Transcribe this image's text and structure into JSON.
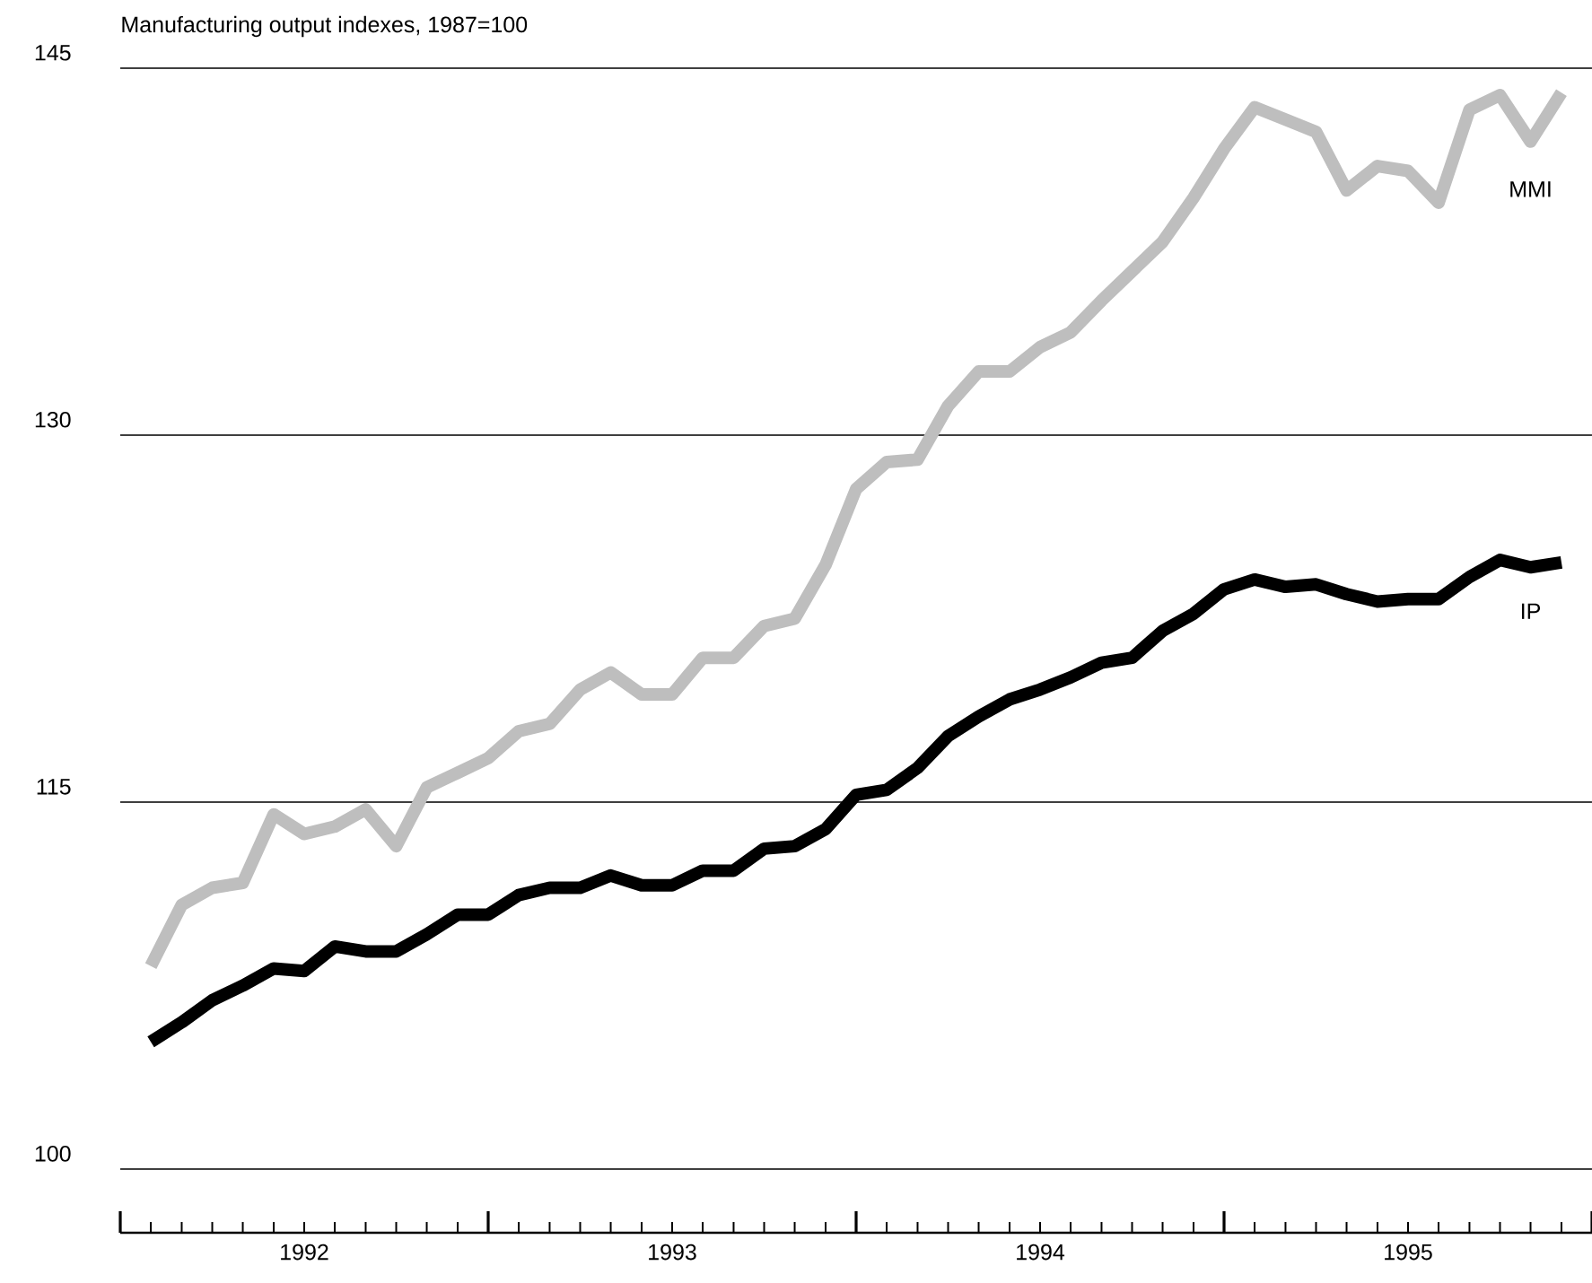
{
  "chart_data": {
    "type": "line",
    "title": "Manufacturing output indexes, 1987=100",
    "x": [
      1992.083,
      1992.167,
      1992.25,
      1992.333,
      1992.417,
      1992.5,
      1992.583,
      1992.667,
      1992.75,
      1992.833,
      1992.917,
      1993.0,
      1993.083,
      1993.167,
      1993.25,
      1993.333,
      1993.417,
      1993.5,
      1993.583,
      1993.667,
      1993.75,
      1993.833,
      1993.917,
      1994.0,
      1994.083,
      1994.167,
      1994.25,
      1994.333,
      1994.417,
      1994.5,
      1994.583,
      1994.667,
      1994.75,
      1994.833,
      1994.917,
      1995.0,
      1995.083,
      1995.167,
      1995.25,
      1995.333,
      1995.417,
      1995.5,
      1995.583,
      1995.667,
      1995.75,
      1995.833,
      1995.917
    ],
    "series": [
      {
        "name": "MMI",
        "color": "#bebebe",
        "values": [
          108.3,
          110.8,
          111.5,
          111.7,
          114.5,
          113.7,
          114.0,
          114.7,
          113.2,
          115.6,
          116.2,
          116.8,
          117.9,
          118.2,
          119.6,
          120.3,
          119.4,
          119.4,
          120.9,
          120.9,
          122.2,
          122.5,
          124.7,
          127.8,
          128.9,
          129.0,
          131.2,
          132.6,
          132.6,
          133.6,
          134.2,
          135.5,
          136.7,
          137.9,
          139.7,
          141.7,
          143.4,
          142.9,
          142.4,
          140.0,
          141.0,
          140.8,
          139.5,
          143.3,
          143.9,
          142.0,
          144.0
        ]
      },
      {
        "name": "IP",
        "color": "#000000",
        "values": [
          105.2,
          106.0,
          106.9,
          107.5,
          108.2,
          108.1,
          109.1,
          108.9,
          108.9,
          109.6,
          110.4,
          110.4,
          111.2,
          111.5,
          111.5,
          112.0,
          111.6,
          111.6,
          112.2,
          112.2,
          113.1,
          113.2,
          113.9,
          115.3,
          115.5,
          116.4,
          117.7,
          118.5,
          119.2,
          119.6,
          120.1,
          120.7,
          120.9,
          122.0,
          122.7,
          123.7,
          124.1,
          123.8,
          123.9,
          123.5,
          123.2,
          123.3,
          123.3,
          124.2,
          124.9,
          124.6,
          124.8
        ]
      }
    ],
    "xlim": [
      1992,
      1996
    ],
    "xticks": [
      {
        "value": 1992.0,
        "label": null
      },
      {
        "value": 1992.083,
        "label": null
      },
      {
        "value": 1992.167,
        "label": null
      },
      {
        "value": 1992.25,
        "label": null
      },
      {
        "value": 1992.333,
        "label": null
      },
      {
        "value": 1992.417,
        "label": null
      },
      {
        "value": 1992.5,
        "label": "1992"
      },
      {
        "value": 1992.583,
        "label": null
      },
      {
        "value": 1992.667,
        "label": null
      },
      {
        "value": 1992.75,
        "label": null
      },
      {
        "value": 1992.833,
        "label": null
      },
      {
        "value": 1992.917,
        "label": null
      },
      {
        "value": 1993.0,
        "label": null
      },
      {
        "value": 1993.083,
        "label": null
      },
      {
        "value": 1993.167,
        "label": null
      },
      {
        "value": 1993.25,
        "label": null
      },
      {
        "value": 1993.333,
        "label": null
      },
      {
        "value": 1993.417,
        "label": null
      },
      {
        "value": 1993.5,
        "label": "1993"
      },
      {
        "value": 1993.583,
        "label": null
      },
      {
        "value": 1993.667,
        "label": null
      },
      {
        "value": 1993.75,
        "label": null
      },
      {
        "value": 1993.833,
        "label": null
      },
      {
        "value": 1993.917,
        "label": null
      },
      {
        "value": 1994.0,
        "label": null
      },
      {
        "value": 1994.083,
        "label": null
      },
      {
        "value": 1994.167,
        "label": null
      },
      {
        "value": 1994.25,
        "label": null
      },
      {
        "value": 1994.333,
        "label": null
      },
      {
        "value": 1994.417,
        "label": null
      },
      {
        "value": 1994.5,
        "label": "1994"
      },
      {
        "value": 1994.583,
        "label": null
      },
      {
        "value": 1994.667,
        "label": null
      },
      {
        "value": 1994.75,
        "label": null
      },
      {
        "value": 1994.833,
        "label": null
      },
      {
        "value": 1994.917,
        "label": null
      },
      {
        "value": 1995.0,
        "label": null
      },
      {
        "value": 1995.083,
        "label": null
      },
      {
        "value": 1995.167,
        "label": null
      },
      {
        "value": 1995.25,
        "label": null
      },
      {
        "value": 1995.333,
        "label": null
      },
      {
        "value": 1995.417,
        "label": null
      },
      {
        "value": 1995.5,
        "label": "1995"
      },
      {
        "value": 1995.583,
        "label": null
      },
      {
        "value": 1995.667,
        "label": null
      },
      {
        "value": 1995.75,
        "label": null
      },
      {
        "value": 1995.833,
        "label": null
      },
      {
        "value": 1995.917,
        "label": null
      },
      {
        "value": 1996.0,
        "label": null
      }
    ],
    "ylim": [
      97.4,
      145
    ],
    "yticks": [
      100,
      115,
      130,
      145
    ],
    "grid": "y"
  }
}
